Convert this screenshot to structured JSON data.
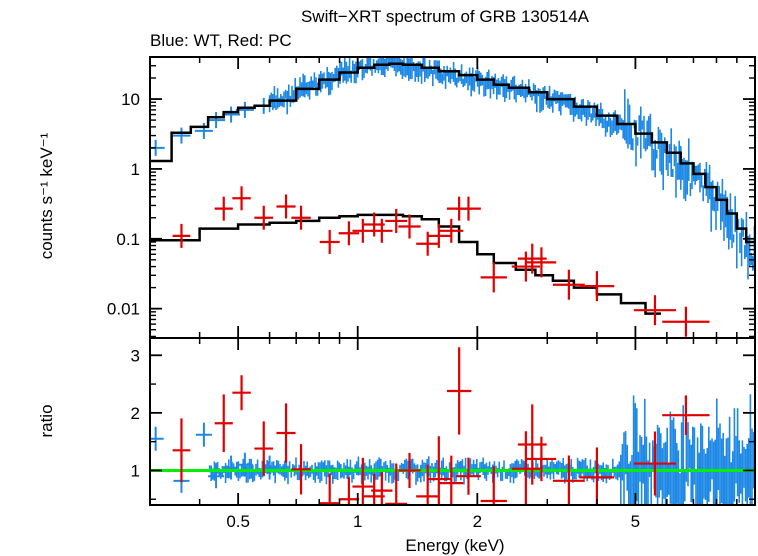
{
  "chart_data": [
    {
      "type": "scatter",
      "title": "Swift−XRT spectrum of GRB 130514A",
      "subtitle": "Blue: WT, Red: PC",
      "xlabel": "Energy (keV)",
      "ylabel": "counts s⁻¹ keV⁻¹",
      "xscale": "log",
      "yscale": "log",
      "xlim": [
        0.3,
        10
      ],
      "ylim": [
        0.0038,
        40
      ],
      "xticks": [
        0.5,
        1,
        2,
        5
      ],
      "xtick_labels": [
        "0.5",
        "1",
        "2",
        "5"
      ],
      "yticks": [
        10,
        1,
        0.1,
        0.01
      ],
      "ytick_labels": [
        "10",
        "1",
        "0.1",
        "0.01"
      ],
      "colors": {
        "wt": "#1e88e5",
        "pc": "#e00000",
        "model": "#000000"
      },
      "series": [
        {
          "name": "WT",
          "color": "#1e88e5",
          "x": [
            0.31,
            0.36,
            0.41,
            0.44,
            0.48,
            0.52,
            0.58,
            0.65,
            0.72,
            0.8,
            0.9,
            1.0,
            1.1,
            1.2,
            1.3,
            1.4,
            1.5,
            1.7,
            1.9,
            2.1,
            2.3,
            2.6,
            3.0,
            3.5,
            4.0,
            4.5,
            5.0,
            5.5,
            6.0,
            6.5,
            7.0,
            7.5,
            8.0,
            8.5,
            9.0,
            9.5,
            10.0
          ],
          "y": [
            2.0,
            3.0,
            3.5,
            5.0,
            6.0,
            7.0,
            8.0,
            10.0,
            13.0,
            17.0,
            22.0,
            26.0,
            29.0,
            31.0,
            31.0,
            28.0,
            25.0,
            21.0,
            19.0,
            17.0,
            15.0,
            13.0,
            10.0,
            7.5,
            5.5,
            4.2,
            3.0,
            2.2,
            1.6,
            1.1,
            0.75,
            0.5,
            0.33,
            0.22,
            0.14,
            0.08,
            0.05
          ]
        },
        {
          "name": "PC",
          "color": "#e00000",
          "x": [
            0.36,
            0.46,
            0.51,
            0.58,
            0.66,
            0.72,
            0.85,
            0.95,
            1.03,
            1.1,
            1.15,
            1.25,
            1.35,
            1.5,
            1.6,
            1.72,
            1.8,
            1.9,
            2.2,
            2.65,
            2.75,
            2.9,
            3.4,
            4.0,
            5.6,
            6.7
          ],
          "y": [
            0.11,
            0.27,
            0.38,
            0.2,
            0.29,
            0.2,
            0.09,
            0.12,
            0.13,
            0.16,
            0.13,
            0.18,
            0.15,
            0.085,
            0.11,
            0.13,
            0.27,
            0.27,
            0.028,
            0.04,
            0.052,
            0.046,
            0.022,
            0.021,
            0.0095,
            0.0065
          ]
        },
        {
          "name": "model-WT",
          "color": "#000000",
          "x": [
            0.3,
            0.34,
            0.38,
            0.42,
            0.46,
            0.5,
            0.55,
            0.6,
            0.7,
            0.8,
            0.9,
            1.0,
            1.1,
            1.2,
            1.3,
            1.45,
            1.6,
            1.8,
            2.0,
            2.2,
            2.4,
            2.7,
            3.0,
            3.5,
            4.0,
            4.5,
            5.0,
            5.5,
            6.0,
            6.5,
            7.0,
            7.5,
            8.0,
            8.5,
            9.0,
            9.5,
            10.0
          ],
          "y": [
            1.3,
            3.3,
            4.0,
            5.5,
            6.5,
            7.5,
            8.0,
            9.5,
            14.0,
            19.0,
            24.0,
            28.0,
            31.0,
            32.0,
            31.0,
            28.0,
            25.0,
            22.0,
            19.0,
            16.0,
            14.5,
            12.5,
            10.0,
            7.8,
            5.8,
            4.4,
            3.2,
            2.4,
            1.7,
            1.2,
            0.85,
            0.55,
            0.36,
            0.23,
            0.14,
            0.09,
            0.045
          ]
        },
        {
          "name": "model-PC",
          "color": "#000000",
          "x": [
            0.3,
            0.4,
            0.5,
            0.6,
            0.7,
            0.8,
            0.9,
            1.0,
            1.15,
            1.3,
            1.45,
            1.6,
            1.8,
            2.0,
            2.2,
            2.5,
            2.8,
            3.1,
            3.5,
            4.0,
            4.6,
            5.3,
            5.8
          ],
          "y": [
            0.095,
            0.14,
            0.16,
            0.17,
            0.18,
            0.2,
            0.21,
            0.22,
            0.22,
            0.21,
            0.19,
            0.15,
            0.09,
            0.06,
            0.045,
            0.036,
            0.03,
            0.025,
            0.02,
            0.016,
            0.012,
            0.0085,
            0.0085
          ]
        }
      ]
    },
    {
      "type": "scatter",
      "xlabel": "Energy (keV)",
      "ylabel": "ratio",
      "xscale": "log",
      "xlim": [
        0.3,
        10
      ],
      "ylim": [
        0.4,
        3.3
      ],
      "xticks": [
        0.5,
        1,
        2,
        5
      ],
      "xtick_labels": [
        "0.5",
        "1",
        "2",
        "5"
      ],
      "yticks": [
        1,
        2,
        3
      ],
      "ytick_labels": [
        "1",
        "2",
        "3"
      ],
      "reference_line": {
        "y": 1,
        "color": "#00ee00"
      },
      "series": [
        {
          "name": "WT",
          "color": "#1e88e5",
          "x": [
            0.31,
            0.36,
            0.41,
            0.44,
            0.48,
            0.52,
            0.6,
            0.7,
            0.8,
            0.9,
            1.0,
            1.2,
            1.4,
            1.6,
            1.8,
            2.0,
            2.3,
            2.6,
            3.0,
            3.5,
            4.0,
            4.5,
            5.0,
            5.5,
            6.0,
            6.5,
            7.0,
            7.5,
            8.0,
            8.5,
            9.0,
            9.5
          ],
          "y": [
            1.55,
            0.82,
            1.62,
            0.9,
            1.05,
            1.1,
            1.05,
            0.95,
            1.1,
            1.0,
            0.92,
            1.05,
            0.95,
            1.1,
            0.98,
            1.02,
            1.1,
            0.97,
            1.05,
            1.0,
            1.08,
            0.95,
            1.05,
            1.0,
            1.1,
            0.95,
            1.25,
            1.15,
            1.4,
            1.3,
            1.6,
            1.1
          ]
        },
        {
          "name": "PC",
          "color": "#e00000",
          "x": [
            0.36,
            0.46,
            0.51,
            0.58,
            0.66,
            0.72,
            0.85,
            0.95,
            1.03,
            1.1,
            1.15,
            1.25,
            1.35,
            1.5,
            1.6,
            1.72,
            1.8,
            1.9,
            2.2,
            2.65,
            2.75,
            2.9,
            3.4,
            4.0,
            5.6,
            6.7
          ],
          "y": [
            1.35,
            1.82,
            2.35,
            1.38,
            1.65,
            1.02,
            0.43,
            0.5,
            0.72,
            0.55,
            0.65,
            0.42,
            1.0,
            0.55,
            0.85,
            0.78,
            2.38,
            0.9,
            0.47,
            1.03,
            1.45,
            1.2,
            0.82,
            0.88,
            1.12,
            1.96
          ]
        }
      ]
    }
  ]
}
